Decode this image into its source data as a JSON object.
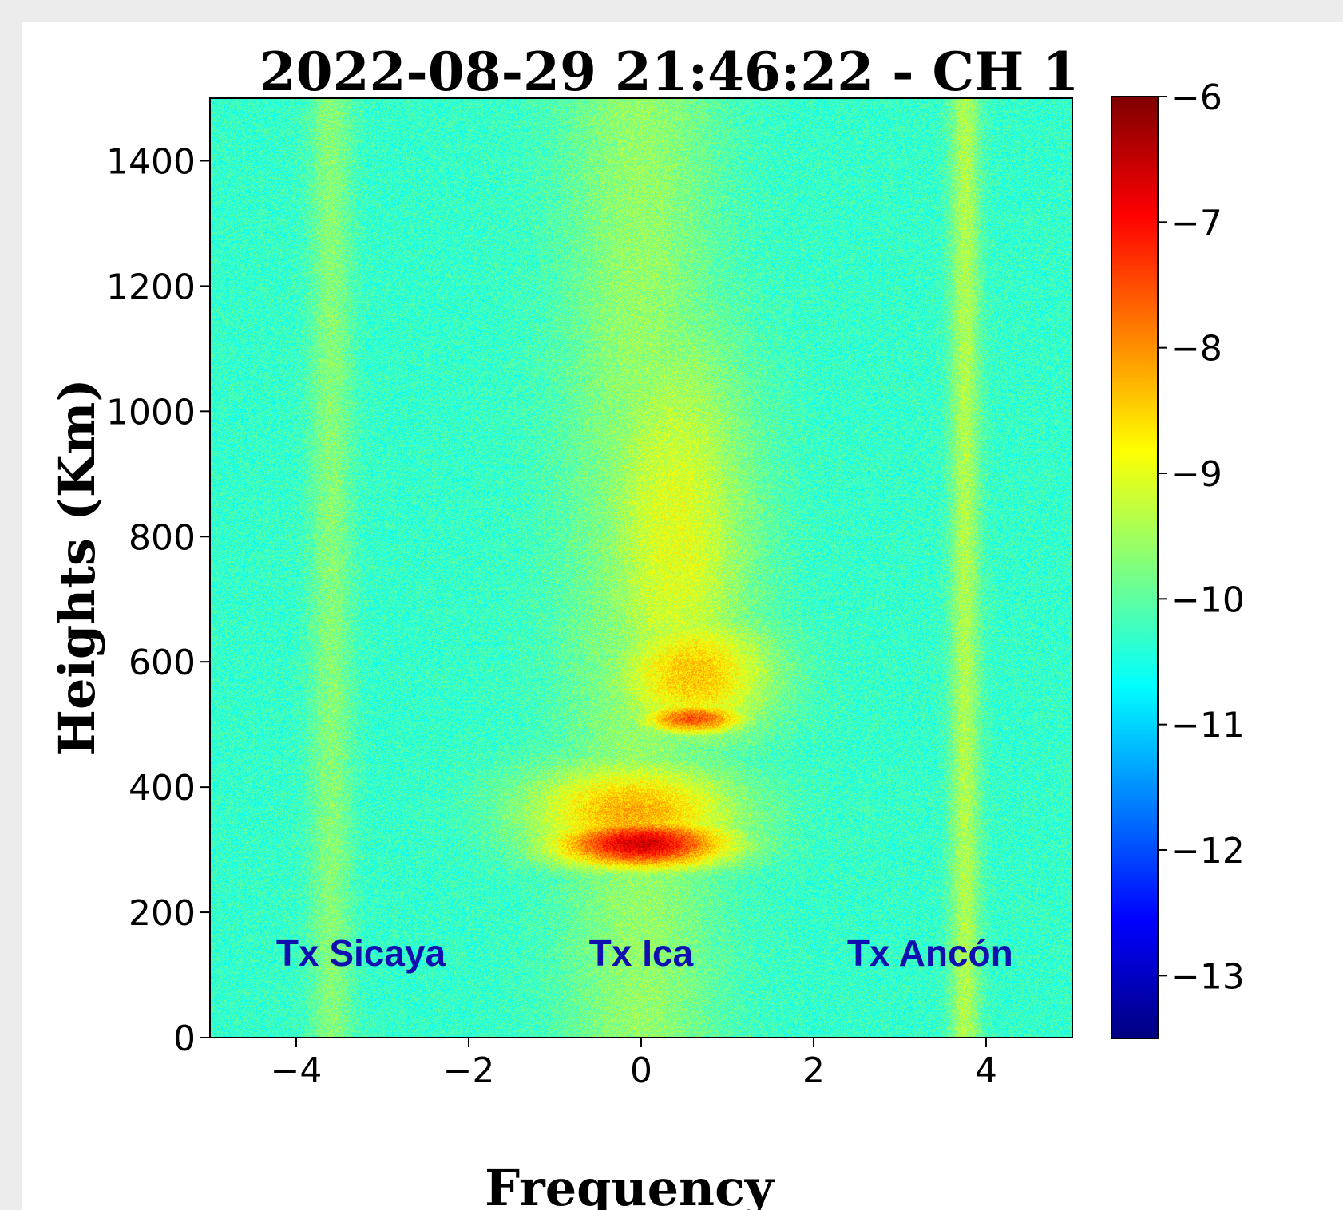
{
  "chart_data": {
    "type": "heatmap",
    "title": "2022-08-29 21:46:22 - CH 1",
    "xlabel": "Frequency",
    "ylabel": "Heights (Km)",
    "xlim": [
      -5,
      5
    ],
    "ylim": [
      0,
      1500
    ],
    "x_ticks": [
      -4,
      -2,
      0,
      2,
      4
    ],
    "x_tick_labels": [
      "−4",
      "−2",
      "0",
      "2",
      "4"
    ],
    "y_ticks": [
      0,
      200,
      400,
      600,
      800,
      1000,
      1200,
      1400
    ],
    "y_tick_labels": [
      "0",
      "200",
      "400",
      "600",
      "800",
      "1000",
      "1200",
      "1400"
    ],
    "colorbar": {
      "colormap": "jet",
      "range": [
        -13.5,
        -6
      ],
      "ticks": [
        -6,
        -7,
        -8,
        -9,
        -10,
        -11,
        -12,
        -13
      ],
      "tick_labels": [
        "−6",
        "−7",
        "−8",
        "−9",
        "−10",
        "−11",
        "−12",
        "−13"
      ]
    },
    "background_level": -10.3,
    "noise_amplitude": 0.5,
    "vertical_bands": [
      {
        "x_center": -3.6,
        "width": 0.35,
        "level": -9.7
      },
      {
        "x_center": 0.0,
        "width": 1.3,
        "level": -9.6
      },
      {
        "x_center": 3.75,
        "width": 0.25,
        "level": -9.4
      }
    ],
    "features": [
      {
        "description": "upper diffuse echo",
        "x_center": 0.4,
        "y_center": 800,
        "x_width": 0.9,
        "y_width": 350,
        "level": -9.0
      },
      {
        "description": "middle echo",
        "x_center": 0.6,
        "y_center": 580,
        "x_width": 0.9,
        "y_width": 100,
        "level": -8.4
      },
      {
        "description": "middle echo lower edge",
        "x_center": 0.6,
        "y_center": 510,
        "x_width": 0.6,
        "y_width": 25,
        "level": -7.5
      },
      {
        "description": "lower strong echo",
        "x_center": 0.0,
        "y_center": 310,
        "x_width": 1.0,
        "y_width": 40,
        "level": -6.6
      },
      {
        "description": "lower echo envelope",
        "x_center": -0.1,
        "y_center": 360,
        "x_width": 1.2,
        "y_width": 80,
        "level": -8.2
      }
    ],
    "annotations": [
      {
        "text": "Tx Sicaya",
        "x": -3.25,
        "y": 135,
        "color": "#1010b0"
      },
      {
        "text": "Tx Ica",
        "x": 0.0,
        "y": 135,
        "color": "#1010b0"
      },
      {
        "text": "Tx Ancón",
        "x": 3.35,
        "y": 135,
        "color": "#1010b0"
      }
    ]
  }
}
